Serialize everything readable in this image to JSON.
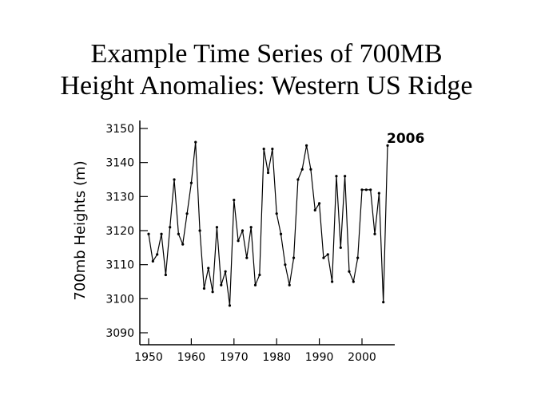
{
  "title_lines": [
    "Example Time Series of 700MB",
    "Height Anomalies: Western US Ridge"
  ],
  "chart_data": {
    "type": "line",
    "title": "Example Time Series of 700MB Height Anomalies: Western US Ridge",
    "ylabel": "700mb Heights (m)",
    "xlabel": "",
    "xlim": [
      1950,
      2007
    ],
    "ylim": [
      3087,
      3153
    ],
    "x_ticks": [
      1950,
      1960,
      1970,
      1980,
      1990,
      2000
    ],
    "y_ticks": [
      3090,
      3100,
      3110,
      3120,
      3130,
      3140,
      3150
    ],
    "grid": false,
    "annotation": {
      "text": "2006",
      "x": 2006
    },
    "series": [
      {
        "x": [
          1950,
          1951,
          1952,
          1953,
          1954,
          1955,
          1956,
          1957,
          1958,
          1959,
          1960,
          1961,
          1962,
          1963,
          1964,
          1965,
          1966,
          1967,
          1968,
          1969,
          1970,
          1971,
          1972,
          1973,
          1974,
          1975,
          1976,
          1977,
          1978,
          1979,
          1980,
          1981,
          1982,
          1983,
          1984,
          1985,
          1986,
          1987,
          1988,
          1989,
          1990,
          1991,
          1992,
          1993,
          1994,
          1995,
          1996,
          1997,
          1998,
          1999,
          2000,
          2001,
          2002,
          2003,
          2004,
          2005,
          2006
        ],
        "y": [
          3119,
          3111,
          3113,
          3119,
          3107,
          3121,
          3135,
          3119,
          3116,
          3125,
          3134,
          3146,
          3120,
          3103,
          3109,
          3102,
          3121,
          3104,
          3108,
          3098,
          3129,
          3117,
          3120,
          3112,
          3121,
          3104,
          3107,
          3144,
          3137,
          3144,
          3125,
          3119,
          3110,
          3104,
          3112,
          3135,
          3138,
          3145,
          3138,
          3126,
          3128,
          3112,
          3113,
          3105,
          3136,
          3115,
          3136,
          3108,
          3105,
          3112,
          3132,
          3132,
          3132,
          3119,
          3131,
          3099,
          3145
        ]
      }
    ]
  }
}
